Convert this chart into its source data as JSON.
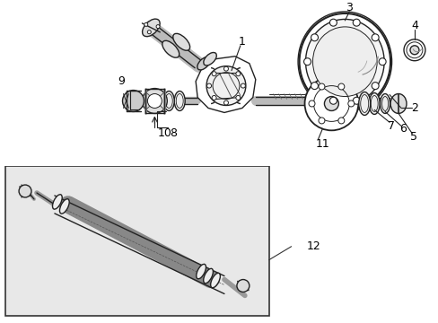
{
  "bg_color": "#ffffff",
  "fig_width": 4.89,
  "fig_height": 3.6,
  "dpi": 100,
  "image_url": "target_embedded"
}
